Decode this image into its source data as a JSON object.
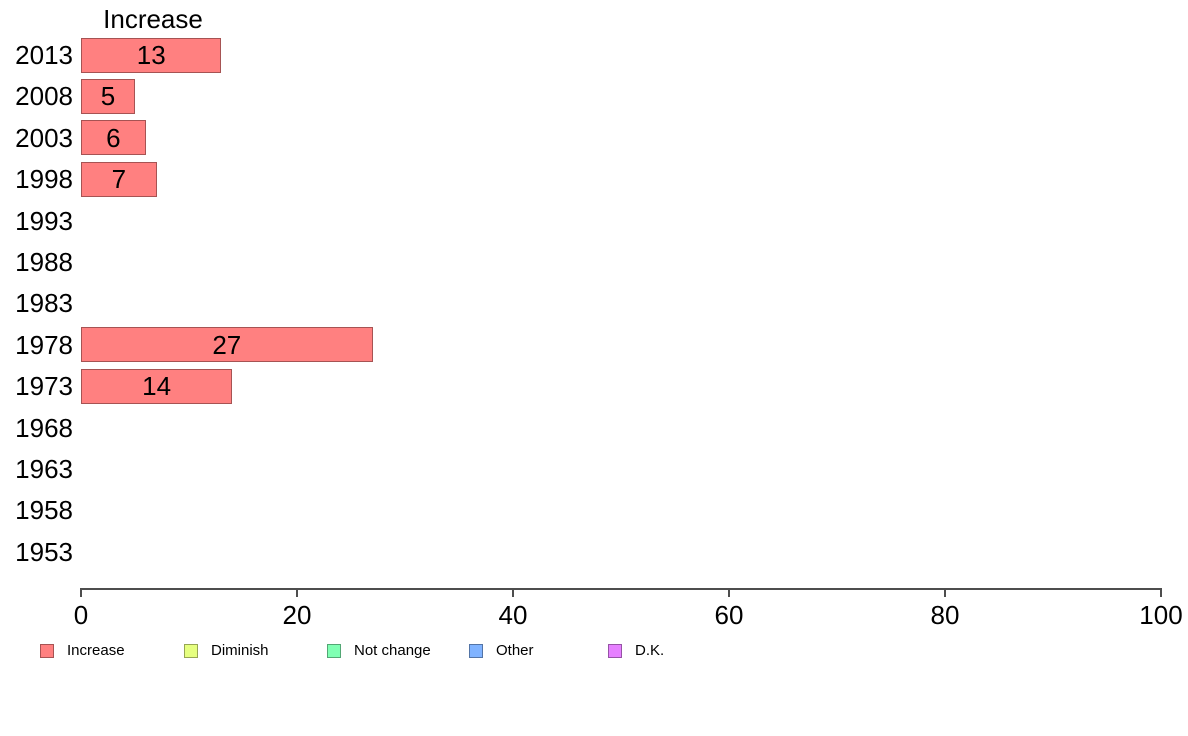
{
  "chart_data": {
    "type": "bar",
    "orientation": "horizontal",
    "title": "Increase",
    "categories": [
      "2013",
      "2008",
      "2003",
      "1998",
      "1993",
      "1988",
      "1983",
      "1978",
      "1973",
      "1968",
      "1963",
      "1958",
      "1953"
    ],
    "values": [
      13,
      5,
      6,
      7,
      0,
      0,
      0,
      27,
      14,
      0,
      0,
      0,
      0
    ],
    "value_labels_shown": true,
    "xlabel": "",
    "ylabel": "",
    "xlim": [
      0,
      100
    ],
    "x_ticks": [
      0,
      20,
      40,
      60,
      80,
      100
    ],
    "grid": false,
    "bar_color": "#FF8080",
    "axis_color": "#4d4d4d",
    "text_color": "#000000",
    "legend_position": "bottom",
    "legend": [
      {
        "label": "Increase",
        "color": "#FF8080"
      },
      {
        "label": "Diminish",
        "color": "#E6FF80"
      },
      {
        "label": "Not change",
        "color": "#80FFB3"
      },
      {
        "label": "Other",
        "color": "#80B3FF"
      },
      {
        "label": "D.K.",
        "color": "#E680FF"
      }
    ]
  }
}
